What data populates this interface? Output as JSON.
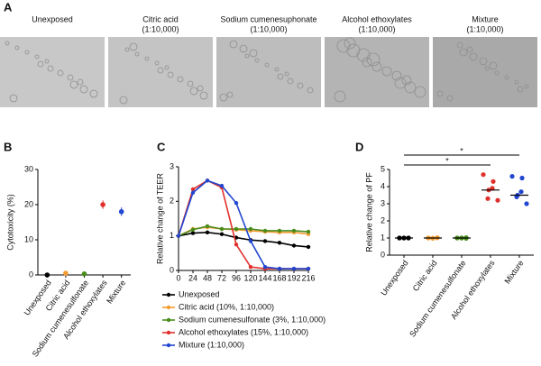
{
  "panel_a": {
    "label": "A",
    "images": [
      {
        "title": [
          "Unexposed"
        ]
      },
      {
        "title": [
          "Citric acid",
          "(1:10,000)"
        ]
      },
      {
        "title": [
          "Sodium cumenesuphonate",
          "(1:10,000)"
        ]
      },
      {
        "title": [
          "Alcohol ethoxylates",
          "(1:10,000)"
        ]
      },
      {
        "title": [
          "Mixture",
          "(1:10,000)"
        ]
      }
    ]
  },
  "chart_data": [
    {
      "type": "scatter",
      "panel": "B",
      "y_label": "Cytotoxicity (%)",
      "categories": [
        "Unexposed",
        "Citric acid",
        "Sodium cumenesulfonate",
        "Alcohol ethoxylates",
        "Mixture"
      ],
      "values": [
        0,
        0.5,
        0.3,
        20,
        18
      ],
      "errors": [
        0.2,
        0.2,
        0.2,
        1.2,
        1.2
      ],
      "colors": [
        "#000000",
        "#f39c32",
        "#4a8c1c",
        "#e0302c",
        "#2146d0"
      ],
      "ylim": [
        0,
        30
      ],
      "yticks": [
        0,
        10,
        20,
        30
      ]
    },
    {
      "type": "line",
      "panel": "C",
      "y_label": "Relative change of TEER",
      "x": [
        0,
        24,
        48,
        72,
        96,
        120,
        144,
        168,
        192,
        216
      ],
      "series": [
        {
          "name": "Unexposed",
          "color": "#000000",
          "values": [
            1,
            1.08,
            1.1,
            1.05,
            0.95,
            0.88,
            0.85,
            0.8,
            0.72,
            0.68
          ]
        },
        {
          "name": "Citric acid (10%, 1:10,000)",
          "color": "#f39c32",
          "values": [
            1,
            1.2,
            1.25,
            1.2,
            1.18,
            1.15,
            1.12,
            1.1,
            1.1,
            1.05
          ]
        },
        {
          "name": "Sodium cumenesulfonate (3%, 1:10,000)",
          "color": "#4a8c1c",
          "values": [
            1,
            1.18,
            1.28,
            1.2,
            1.2,
            1.2,
            1.15,
            1.15,
            1.15,
            1.12
          ]
        },
        {
          "name": "Alcohol ethoxylates (15%, 1:10,000)",
          "color": "#e0302c",
          "values": [
            1,
            2.35,
            2.6,
            2.4,
            0.75,
            0.1,
            0.05,
            0.05,
            0.05,
            0.05
          ]
        },
        {
          "name": "Mixture (1:10,000)",
          "color": "#2146d0",
          "values": [
            1,
            2.25,
            2.6,
            2.45,
            1.95,
            0.85,
            0.1,
            0.05,
            0.05,
            0.05
          ]
        }
      ],
      "xlim": [
        0,
        216
      ],
      "xticks": [
        0,
        24,
        48,
        72,
        96,
        120,
        144,
        168,
        192,
        216
      ],
      "ylim": [
        0,
        3
      ],
      "yticks": [
        0,
        1,
        2,
        3
      ]
    },
    {
      "type": "strip",
      "panel": "D",
      "y_label": "Relative change of PF",
      "categories": [
        "Unexposed",
        "Citric acid",
        "Sodium cumenesulfonate",
        "Alcohol ethoxylates",
        "Mixture"
      ],
      "colors": [
        "#000000",
        "#f39c32",
        "#4a8c1c",
        "#e0302c",
        "#2146d0"
      ],
      "points": [
        [
          1,
          1,
          1,
          1,
          1,
          1
        ],
        [
          1,
          0.98,
          1.02,
          1,
          0.99,
          1.01
        ],
        [
          1,
          0.99,
          1.02,
          1,
          1.01,
          0.98
        ],
        [
          4.7,
          4.3,
          3.9,
          3.8,
          3.3,
          3.2
        ],
        [
          4.6,
          4.5,
          3.7,
          3.5,
          3.4,
          3.0
        ]
      ],
      "medians": [
        1,
        1,
        1,
        3.8,
        3.5
      ],
      "significance": [
        {
          "text": "*",
          "from": 0,
          "to": 4
        },
        {
          "text": "*",
          "from": 0,
          "to": 3
        }
      ],
      "ylim": [
        0,
        5
      ],
      "yticks": [
        0,
        1,
        2,
        3,
        4,
        5
      ]
    }
  ]
}
